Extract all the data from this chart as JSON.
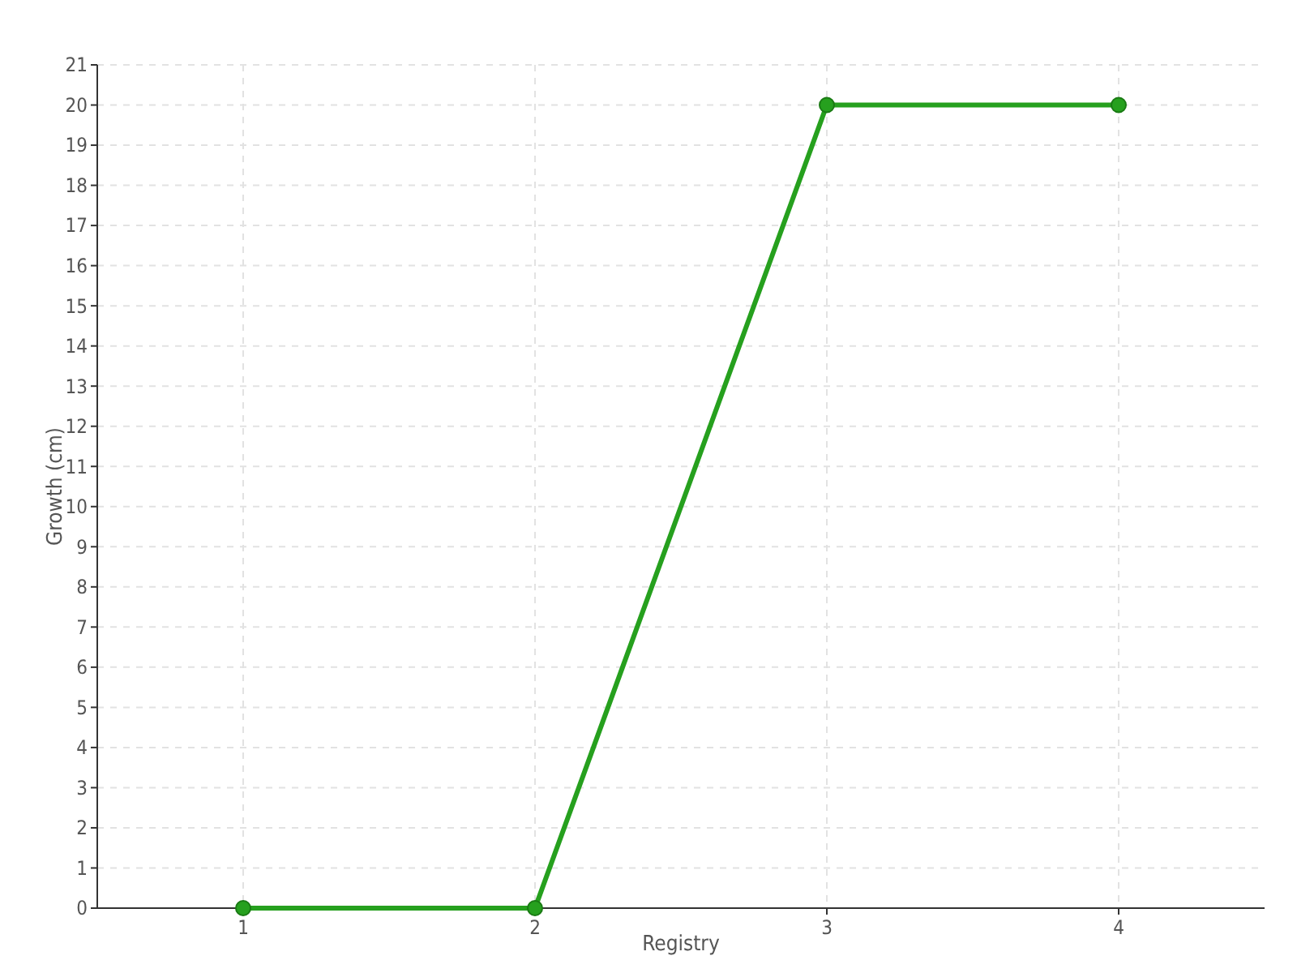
{
  "chart_data": {
    "type": "line",
    "xlabel": "Registry",
    "ylabel": "Growth (cm)",
    "x": [
      1,
      2,
      3,
      4
    ],
    "series": [
      {
        "color": "#26a01e",
        "values": [
          0,
          0,
          20,
          20
        ]
      }
    ],
    "xlim": [
      0.5,
      4.5
    ],
    "xticks": [
      1,
      2,
      3,
      4
    ],
    "ylim": [
      0,
      21
    ],
    "yticks": [
      0,
      1,
      2,
      3,
      4,
      5,
      6,
      7,
      8,
      9,
      10,
      11,
      12,
      13,
      14,
      15,
      16,
      17,
      18,
      19,
      20,
      21
    ],
    "grid": true,
    "marker": "circle",
    "line_style": "solid"
  }
}
